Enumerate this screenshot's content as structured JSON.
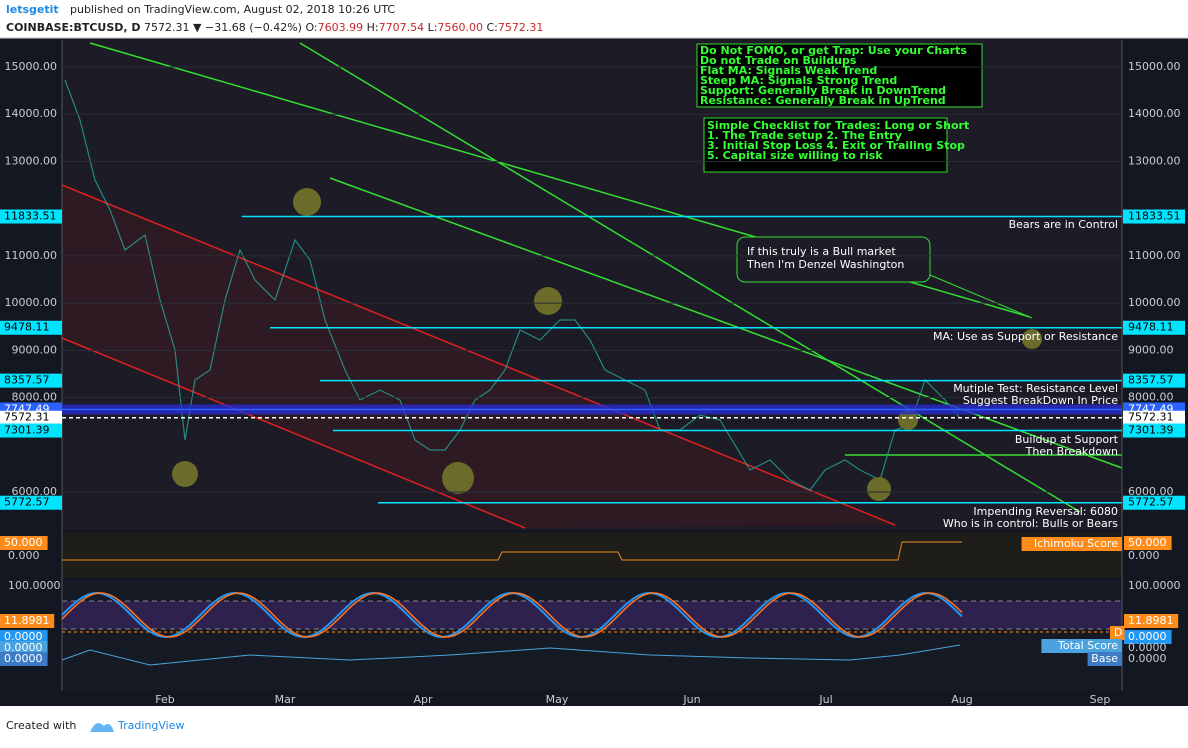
{
  "header": {
    "author": "letsgetit",
    "published": "published on TradingView.com, August 02, 2018 10:26 UTC",
    "symbol": "COINBASE:BTCUSD, D",
    "price": "7572.31",
    "change": "−31.68 (−0.42%)",
    "ohlc": [
      {
        "label": "O:",
        "value": "7603.99"
      },
      {
        "label": "H:",
        "value": "7707.54"
      },
      {
        "label": "L:",
        "value": "7560.00"
      },
      {
        "label": "C:",
        "value": "7572.31"
      }
    ]
  },
  "price_axis": {
    "ticks": [
      "15000.00",
      "14000.00",
      "13000.00",
      "11000.00",
      "10000.00",
      "9000.00",
      "8000.00",
      "6000.00"
    ],
    "levels": [
      "11833.51",
      "9478.11",
      "8357.57",
      "7747.49",
      "7572.31",
      "7301.39",
      "5772.57"
    ]
  },
  "time_axis": {
    "months": [
      "Feb",
      "Mar",
      "Apr",
      "May",
      "Jun",
      "Jul",
      "Aug",
      "Sep"
    ]
  },
  "notes": [
    "Do Not FOMO, or get Trap: Use your Charts",
    "Do not Trade on Buildups",
    "Flat MA: Signals Weak Trend",
    "Steep MA: Signals Strong Trend",
    "Support: Generally Break in DownTrend",
    "Resistance:  Generally Break in UpTrend"
  ],
  "checklist": [
    "Simple Checklist for Trades: Long or Short",
    "1. The Trade setup 2. The Entry",
    "3. Initial Stop Loss 4. Exit or Trailing Stop",
    "5. Capital size willing to risk"
  ],
  "callout": [
    "If this truly is a Bull market",
    "Then I'm Denzel Washington"
  ],
  "annotations": [
    "Bears are in Control",
    "MA: Use as Support or Resistance",
    "Mutiple Test: Resistance Level",
    "Suggest BreakDown In Price",
    "Buildup at Support",
    "Then Breakdown",
    "Impending Reversal: 6080",
    "Who is in control: Bulls or Bears"
  ],
  "indicators": {
    "ichimoku": {
      "value": "50.000",
      "zero": "0.000",
      "name": "Ichimoku Score"
    },
    "stoch": {
      "top": "100.0000",
      "value": "11.8981",
      "zero": "0.0000",
      "flag": "D"
    },
    "score": {
      "value": "0.0000",
      "base": "0.0000",
      "name": "Total Score",
      "base_name": "Base"
    }
  },
  "footer": {
    "created": "Created with",
    "brand": "TradingView"
  }
}
